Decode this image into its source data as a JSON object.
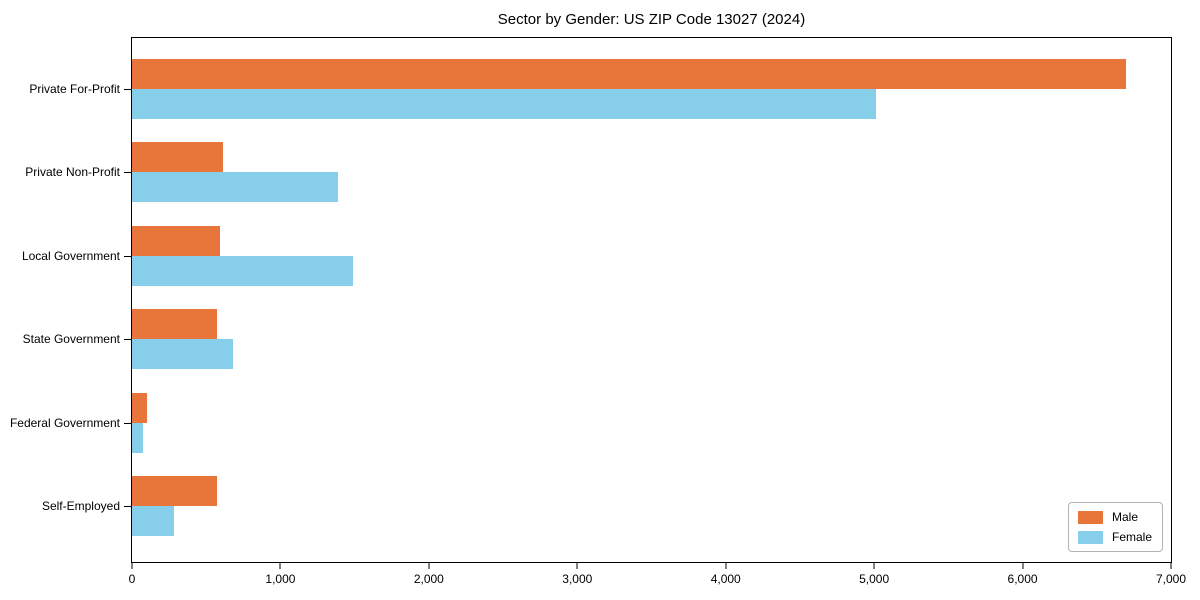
{
  "title": "Sector by Gender: US ZIP Code 13027 (2024)",
  "colors": {
    "male": "#e8763a",
    "female": "#87ceeb",
    "spine": "#000000",
    "legend_border": "#b3b3b3"
  },
  "legend": {
    "position": "lower right",
    "entries": [
      "Male",
      "Female"
    ]
  },
  "chart_data": {
    "type": "bar",
    "orientation": "horizontal",
    "title": "Sector by Gender: US ZIP Code 13027 (2024)",
    "categories": [
      "Private For-Profit",
      "Private Non-Profit",
      "Local Government",
      "State Government",
      "Federal Government",
      "Self-Employed"
    ],
    "series": [
      {
        "name": "Male",
        "color": "#e8763a",
        "values": [
          6700,
          615,
          590,
          575,
          100,
          570
        ]
      },
      {
        "name": "Female",
        "color": "#87ceeb",
        "values": [
          5010,
          1390,
          1490,
          680,
          75,
          280
        ]
      }
    ],
    "xlabel": "",
    "ylabel": "",
    "xlim": [
      0,
      7000
    ],
    "xticks": [
      0,
      1000,
      2000,
      3000,
      4000,
      5000,
      6000,
      7000
    ],
    "xtick_labels": [
      "0",
      "1,000",
      "2,000",
      "3,000",
      "4,000",
      "5,000",
      "6,000",
      "7,000"
    ],
    "grid": false,
    "legend_position": "lower right"
  }
}
